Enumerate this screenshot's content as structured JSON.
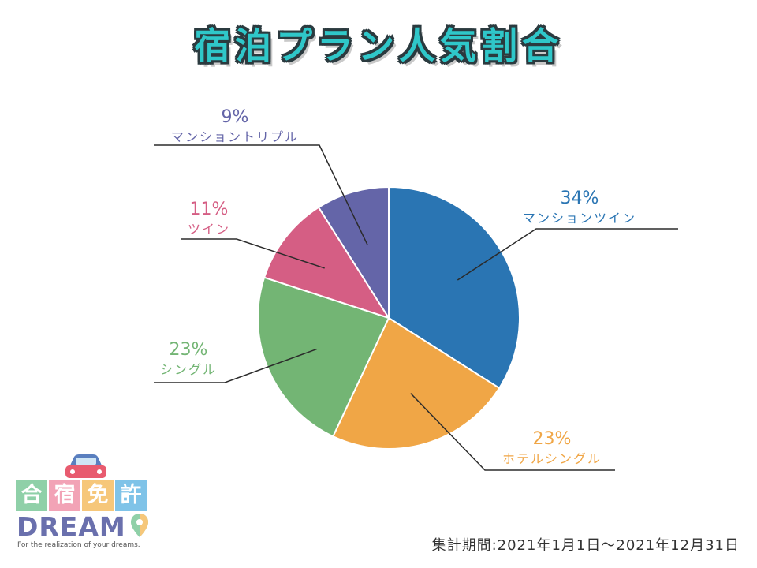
{
  "title": "宿泊プラン人気割合",
  "period": "集計期間:2021年1月1日～2021年12月31日",
  "logo": {
    "name_chars": [
      "合",
      "宿",
      "免",
      "許"
    ],
    "dream": "DREAM",
    "tagline": "For the realization of your dreams.",
    "cell_colors": [
      "#8fd0a8",
      "#f2a3b6",
      "#f6c77a",
      "#7fc3e8"
    ]
  },
  "chart_data": {
    "type": "pie",
    "title": "宿泊プラン人気割合",
    "start": "12 o'clock",
    "direction": "clockwise",
    "slices": [
      {
        "label": "マンションツイン",
        "value": 34,
        "pct_text": "34%",
        "color": "#2a75b3"
      },
      {
        "label": "ホテルシングル",
        "value": 23,
        "pct_text": "23%",
        "color": "#f0a646"
      },
      {
        "label": "シングル",
        "value": 23,
        "pct_text": "23%",
        "color": "#73b574"
      },
      {
        "label": "ツイン",
        "value": 11,
        "pct_text": "11%",
        "color": "#d55e84"
      },
      {
        "label": "マンショントリプル",
        "value": 9,
        "pct_text": "9%",
        "color": "#6465a8"
      }
    ]
  }
}
